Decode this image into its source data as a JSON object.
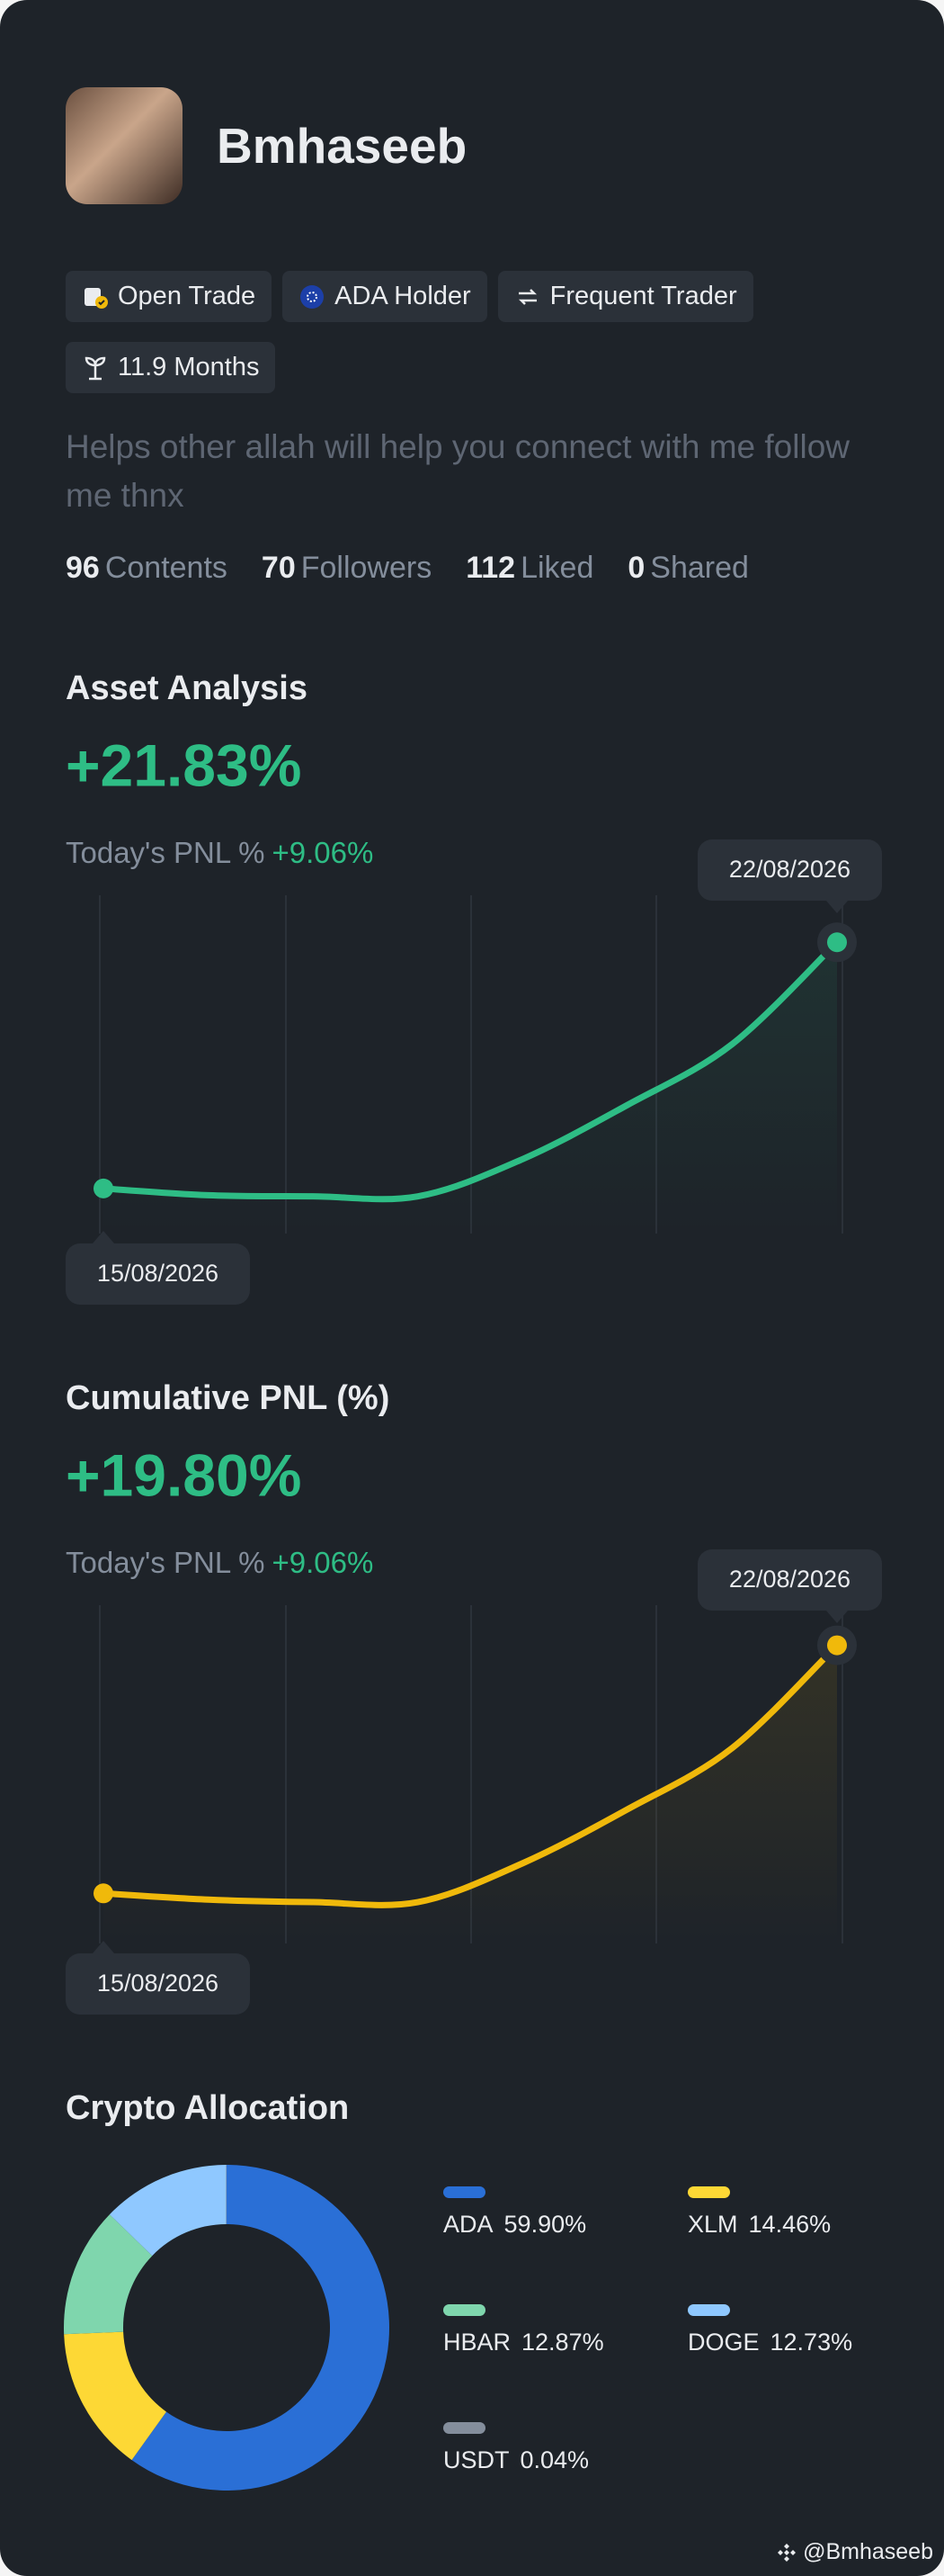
{
  "profile": {
    "name": "Bmhaseeb",
    "badges": [
      "Open Trade",
      "ADA Holder",
      "Frequent Trader",
      "11.9 Months"
    ],
    "bio": "Helps other allah will help you connect with me follow me thnx",
    "stats": [
      {
        "value": 96,
        "label": "Contents"
      },
      {
        "value": 70,
        "label": "Followers"
      },
      {
        "value": 112,
        "label": "Liked"
      },
      {
        "value": 0,
        "label": "Shared"
      }
    ]
  },
  "chart_data": [
    {
      "type": "line",
      "title": "Asset Analysis",
      "headline": "+21.83%",
      "pnl_label": "Today's PNL %",
      "pnl_value": "+9.06%",
      "categories": [
        "15/08/2026",
        null,
        null,
        null,
        null,
        null,
        null,
        "22/08/2026"
      ],
      "values": [
        0,
        -0.6,
        -0.7,
        -0.7,
        2.6,
        7.4,
        12.8,
        21.83
      ],
      "color": "#2ebd85",
      "ylim": [
        -4,
        26
      ]
    },
    {
      "type": "line",
      "title": "Cumulative PNL (%)",
      "headline": "+19.80%",
      "pnl_label": "Today's PNL %",
      "pnl_value": "+9.06%",
      "categories": [
        "15/08/2026",
        null,
        null,
        null,
        null,
        null,
        null,
        "22/08/2026"
      ],
      "values": [
        0,
        -0.5,
        -0.7,
        -0.7,
        2.4,
        6.7,
        11.6,
        19.8
      ],
      "color": "#f0b90b",
      "ylim": [
        -4,
        23
      ]
    },
    {
      "type": "donut",
      "title": "Crypto Allocation",
      "categories": [
        "ADA",
        "XLM",
        "HBAR",
        "DOGE",
        "USDT"
      ],
      "values": [
        59.9,
        14.46,
        12.87,
        12.73,
        0.04
      ],
      "value_labels": [
        "59.90%",
        "14.46%",
        "12.87%",
        "12.73%",
        "0.04%"
      ],
      "colors": [
        "#2a6fd6",
        "#fdd835",
        "#7fd6ad",
        "#8fc8ff",
        "#848e9c"
      ]
    }
  ],
  "watermark": "@Bmhaseeb"
}
